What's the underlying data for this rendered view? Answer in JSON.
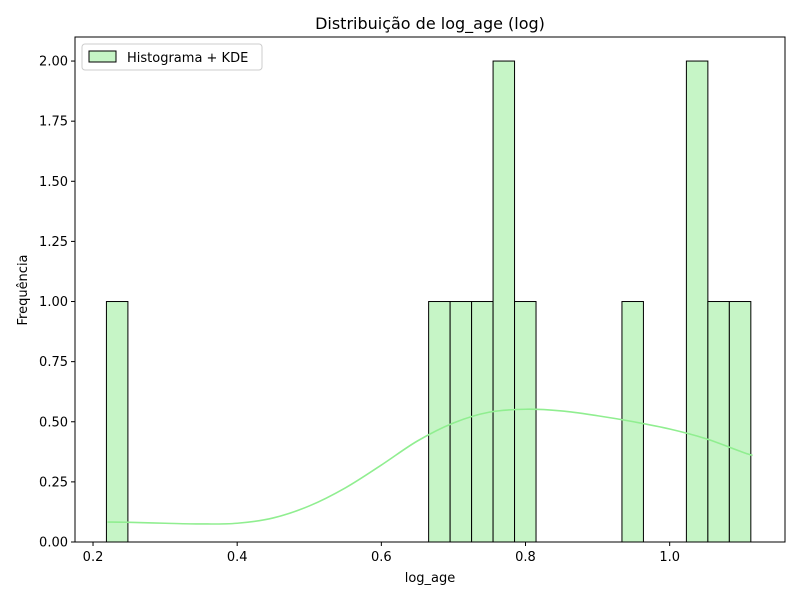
{
  "chart_data": {
    "type": "bar",
    "title": "Distribuição de log_age (log)",
    "xlabel": "log_age",
    "ylabel": "Frequência",
    "xlim": [
      0.175,
      1.16
    ],
    "ylim": [
      0,
      2.1
    ],
    "xticks": [
      0.2,
      0.4,
      0.6,
      0.8,
      1.0
    ],
    "xtick_labels": [
      "0.2",
      "0.4",
      "0.6",
      "0.8",
      "1.0"
    ],
    "yticks": [
      0,
      0.25,
      0.5,
      0.75,
      1.0,
      1.25,
      1.5,
      1.75,
      2.0
    ],
    "ytick_labels": [
      "0.00",
      "0.25",
      "0.50",
      "0.75",
      "1.00",
      "1.25",
      "1.50",
      "1.75",
      "2.00"
    ],
    "bin_start": 0.2186,
    "bin_width": 0.0298,
    "counts": [
      1,
      0,
      0,
      0,
      0,
      0,
      0,
      0,
      0,
      0,
      0,
      0,
      0,
      0,
      0,
      1,
      1,
      1,
      2,
      1,
      0,
      0,
      0,
      0,
      1,
      0,
      0,
      2,
      1,
      1
    ],
    "kde": {
      "x": [
        0.22,
        0.25,
        0.3,
        0.35,
        0.4,
        0.45,
        0.5,
        0.55,
        0.6,
        0.65,
        0.7,
        0.75,
        0.8,
        0.85,
        0.9,
        0.95,
        1.0,
        1.05,
        1.1,
        1.115
      ],
      "y": [
        0.083,
        0.082,
        0.078,
        0.075,
        0.078,
        0.1,
        0.15,
        0.225,
        0.32,
        0.42,
        0.495,
        0.54,
        0.552,
        0.545,
        0.525,
        0.5,
        0.47,
        0.43,
        0.375,
        0.36
      ]
    },
    "legend": {
      "label": "Histograma + KDE",
      "position": "top-left"
    },
    "colors": {
      "bar_fill": "#c6f5c6",
      "bar_edge": "#000000",
      "kde_line": "#90ee90"
    },
    "grid": false
  }
}
